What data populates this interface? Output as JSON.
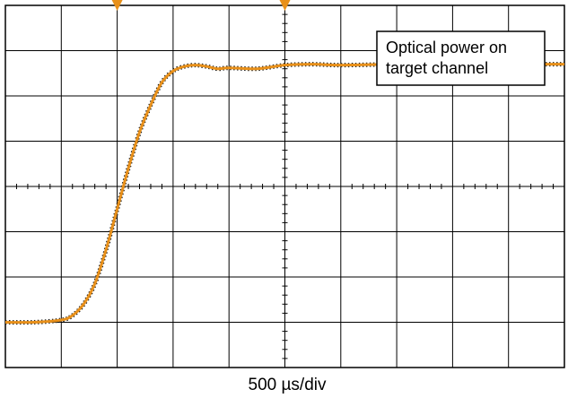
{
  "chart_data": {
    "type": "line",
    "title": "",
    "xlabel": "500 µs/div",
    "ylabel": "",
    "annotation": "Optical power on target channel",
    "grid": true,
    "divisions": {
      "x": 10,
      "y": 8
    },
    "xlim": [
      0,
      10
    ],
    "ylim": [
      0,
      8
    ],
    "x_unit": "div",
    "y_unit": "div",
    "trace_color": "#e8901a",
    "trace_shadow_color": "#1a1a1a",
    "trigger_marker_color": "#e8901a",
    "trigger_marker_positions_x": [
      2,
      5
    ],
    "series": [
      {
        "x": [
          0,
          0.5,
          1.0,
          1.2,
          1.4,
          1.6,
          1.8,
          2.0,
          2.2,
          2.4,
          2.6,
          2.8,
          3.0,
          3.2,
          3.4,
          3.6,
          3.8,
          4.0,
          4.5,
          5.0,
          5.5,
          6.0,
          7.0,
          8.0,
          9.0,
          10.0
        ],
        "values": [
          1.0,
          1.0,
          1.05,
          1.15,
          1.4,
          1.85,
          2.6,
          3.5,
          4.4,
          5.2,
          5.8,
          6.3,
          6.55,
          6.65,
          6.68,
          6.65,
          6.6,
          6.62,
          6.6,
          6.68,
          6.7,
          6.68,
          6.7,
          6.7,
          6.7,
          6.7
        ]
      }
    ]
  },
  "legend": {
    "line1": "Optical power on",
    "line2": "target channel"
  }
}
